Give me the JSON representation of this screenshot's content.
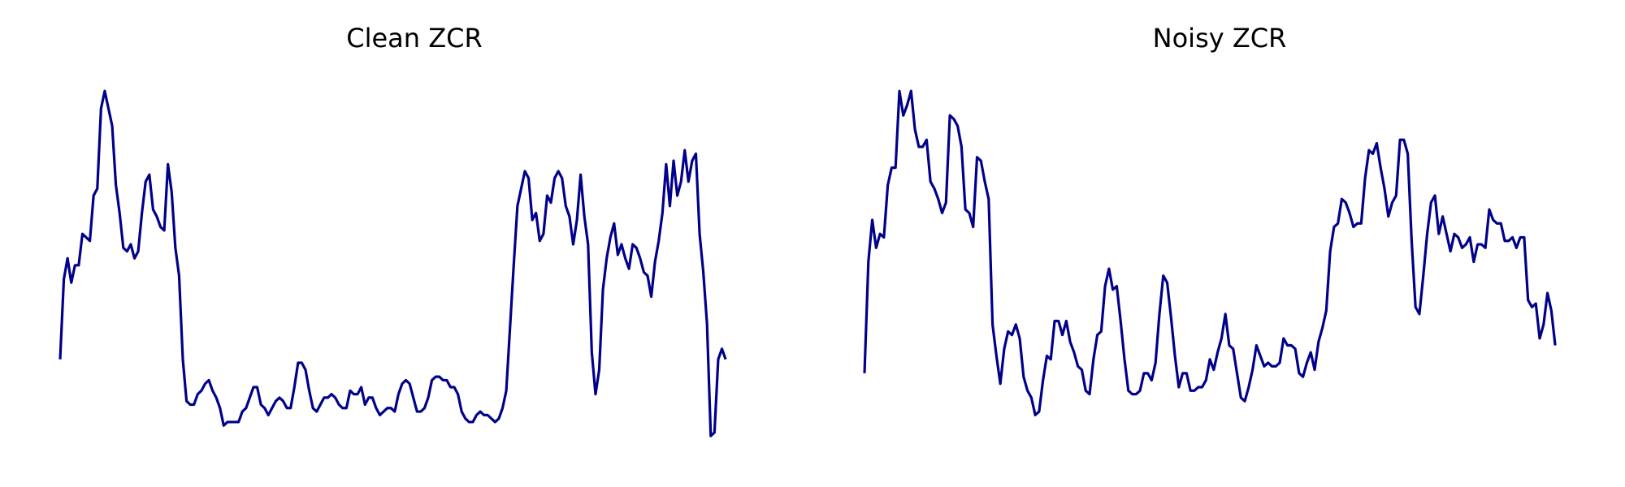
{
  "chart_data": [
    {
      "type": "line",
      "title": "Clean ZCR",
      "xlabel": "",
      "ylabel": "",
      "axes_visible": false,
      "grid": false,
      "xlim": [
        0,
        191
      ],
      "ylim": [
        -0.02,
        1.04
      ],
      "series": [
        {
          "color": "#00008b",
          "values": [
            0.23,
            0.46,
            0.52,
            0.45,
            0.5,
            0.5,
            0.59,
            0.58,
            0.57,
            0.7,
            0.72,
            0.95,
            1.0,
            0.95,
            0.9,
            0.73,
            0.65,
            0.55,
            0.54,
            0.56,
            0.52,
            0.54,
            0.65,
            0.74,
            0.76,
            0.66,
            0.64,
            0.61,
            0.6,
            0.79,
            0.71,
            0.55,
            0.47,
            0.23,
            0.11,
            0.1,
            0.1,
            0.13,
            0.14,
            0.16,
            0.17,
            0.14,
            0.12,
            0.09,
            0.04,
            0.05,
            0.05,
            0.05,
            0.05,
            0.08,
            0.09,
            0.12,
            0.15,
            0.15,
            0.1,
            0.09,
            0.07,
            0.09,
            0.11,
            0.12,
            0.11,
            0.09,
            0.09,
            0.15,
            0.22,
            0.22,
            0.2,
            0.14,
            0.09,
            0.08,
            0.1,
            0.12,
            0.12,
            0.13,
            0.12,
            0.1,
            0.09,
            0.09,
            0.14,
            0.13,
            0.13,
            0.15,
            0.1,
            0.12,
            0.12,
            0.09,
            0.07,
            0.08,
            0.09,
            0.09,
            0.08,
            0.13,
            0.16,
            0.17,
            0.16,
            0.12,
            0.08,
            0.08,
            0.09,
            0.12,
            0.17,
            0.18,
            0.18,
            0.17,
            0.17,
            0.15,
            0.15,
            0.13,
            0.08,
            0.06,
            0.05,
            0.05,
            0.07,
            0.08,
            0.07,
            0.07,
            0.06,
            0.05,
            0.06,
            0.09,
            0.14,
            0.32,
            0.5,
            0.67,
            0.72,
            0.77,
            0.75,
            0.63,
            0.65,
            0.57,
            0.59,
            0.7,
            0.68,
            0.75,
            0.77,
            0.75,
            0.67,
            0.64,
            0.56,
            0.63,
            0.76,
            0.64,
            0.56,
            0.25,
            0.13,
            0.2,
            0.43,
            0.52,
            0.58,
            0.62,
            0.53,
            0.56,
            0.52,
            0.49,
            0.56,
            0.55,
            0.52,
            0.48,
            0.47,
            0.41,
            0.51,
            0.57,
            0.65,
            0.79,
            0.67,
            0.8,
            0.7,
            0.74,
            0.83,
            0.74,
            0.8,
            0.82,
            0.59,
            0.48,
            0.33,
            0.01,
            0.02,
            0.23,
            0.26,
            0.23
          ]
        }
      ]
    },
    {
      "type": "line",
      "title": "Noisy ZCR",
      "xlabel": "",
      "ylabel": "",
      "axes_visible": false,
      "grid": false,
      "xlim": [
        0,
        183
      ],
      "ylim": [
        -0.02,
        1.04
      ],
      "series": [
        {
          "color": "#00008b",
          "values": [
            0.19,
            0.51,
            0.63,
            0.55,
            0.59,
            0.58,
            0.73,
            0.78,
            0.78,
            1.0,
            0.93,
            0.96,
            1.0,
            0.89,
            0.84,
            0.84,
            0.86,
            0.74,
            0.72,
            0.69,
            0.65,
            0.68,
            0.93,
            0.92,
            0.9,
            0.84,
            0.66,
            0.65,
            0.61,
            0.81,
            0.8,
            0.74,
            0.69,
            0.33,
            0.24,
            0.16,
            0.26,
            0.31,
            0.3,
            0.33,
            0.29,
            0.18,
            0.14,
            0.12,
            0.07,
            0.08,
            0.17,
            0.24,
            0.23,
            0.34,
            0.34,
            0.3,
            0.34,
            0.28,
            0.25,
            0.21,
            0.2,
            0.14,
            0.13,
            0.23,
            0.3,
            0.31,
            0.44,
            0.49,
            0.43,
            0.44,
            0.34,
            0.23,
            0.14,
            0.13,
            0.13,
            0.14,
            0.19,
            0.19,
            0.17,
            0.22,
            0.36,
            0.47,
            0.45,
            0.35,
            0.24,
            0.15,
            0.19,
            0.19,
            0.14,
            0.14,
            0.15,
            0.15,
            0.17,
            0.23,
            0.2,
            0.25,
            0.29,
            0.36,
            0.27,
            0.26,
            0.19,
            0.12,
            0.11,
            0.15,
            0.2,
            0.27,
            0.24,
            0.21,
            0.22,
            0.21,
            0.21,
            0.22,
            0.29,
            0.27,
            0.27,
            0.26,
            0.19,
            0.18,
            0.22,
            0.25,
            0.2,
            0.28,
            0.32,
            0.37,
            0.54,
            0.61,
            0.62,
            0.69,
            0.68,
            0.65,
            0.61,
            0.62,
            0.62,
            0.75,
            0.83,
            0.82,
            0.85,
            0.78,
            0.72,
            0.64,
            0.68,
            0.7,
            0.86,
            0.86,
            0.82,
            0.57,
            0.38,
            0.36,
            0.47,
            0.59,
            0.68,
            0.7,
            0.59,
            0.64,
            0.59,
            0.54,
            0.59,
            0.58,
            0.55,
            0.56,
            0.58,
            0.51,
            0.56,
            0.56,
            0.55,
            0.66,
            0.63,
            0.62,
            0.62,
            0.57,
            0.57,
            0.58,
            0.55,
            0.58,
            0.58,
            0.4,
            0.38,
            0.39,
            0.29,
            0.33,
            0.42,
            0.37,
            0.27
          ]
        }
      ]
    }
  ]
}
